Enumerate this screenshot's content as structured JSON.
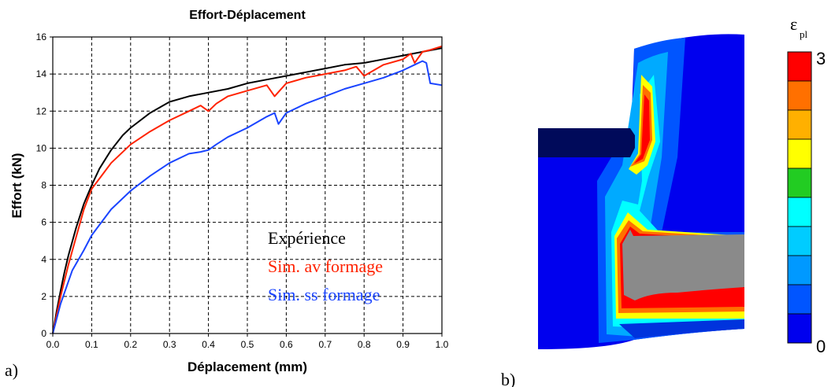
{
  "panel_a_label": "a)",
  "panel_b_label": "b)",
  "chart_data": {
    "type": "line",
    "title": "Effort-Déplacement",
    "xlabel": "Déplacement (mm)",
    "ylabel": "Effort (kN)",
    "xlim": [
      0,
      1.0
    ],
    "ylim": [
      0,
      16
    ],
    "xticks": [
      "0.0",
      "0.1",
      "0.2",
      "0.3",
      "0.4",
      "0.5",
      "0.6",
      "0.7",
      "0.8",
      "0.9",
      "1.0"
    ],
    "yticks": [
      "0",
      "2",
      "4",
      "6",
      "8",
      "10",
      "12",
      "14",
      "16"
    ],
    "grid": true,
    "legend_position": "bottom-right",
    "series": [
      {
        "name": "Expérience",
        "color": "#000000",
        "x": [
          0,
          0.01,
          0.02,
          0.03,
          0.04,
          0.06,
          0.08,
          0.1,
          0.12,
          0.15,
          0.18,
          0.2,
          0.25,
          0.3,
          0.35,
          0.4,
          0.45,
          0.5,
          0.55,
          0.6,
          0.65,
          0.7,
          0.75,
          0.8,
          0.85,
          0.9,
          0.95,
          1.0
        ],
        "y": [
          0,
          1.2,
          2.3,
          3.3,
          4.2,
          5.7,
          7.0,
          8.0,
          8.9,
          9.9,
          10.7,
          11.1,
          11.9,
          12.5,
          12.8,
          13.0,
          13.2,
          13.5,
          13.7,
          13.9,
          14.1,
          14.3,
          14.5,
          14.6,
          14.8,
          15.0,
          15.2,
          15.4
        ]
      },
      {
        "name": "Sim. av formage",
        "color": "#ff2200",
        "x": [
          0,
          0.02,
          0.04,
          0.06,
          0.08,
          0.1,
          0.15,
          0.2,
          0.25,
          0.3,
          0.35,
          0.38,
          0.4,
          0.42,
          0.45,
          0.5,
          0.55,
          0.57,
          0.6,
          0.65,
          0.7,
          0.75,
          0.78,
          0.8,
          0.85,
          0.9,
          0.92,
          0.93,
          0.95,
          0.97,
          1.0
        ],
        "y": [
          0,
          2.0,
          3.7,
          5.2,
          6.7,
          7.8,
          9.2,
          10.2,
          10.9,
          11.5,
          12.0,
          12.3,
          12.0,
          12.4,
          12.8,
          13.1,
          13.4,
          12.8,
          13.5,
          13.8,
          14.0,
          14.2,
          14.4,
          13.9,
          14.5,
          14.8,
          15.1,
          14.6,
          15.2,
          15.3,
          15.5
        ]
      },
      {
        "name": "Sim. ss formage",
        "color": "#1a44ff",
        "x": [
          0,
          0.02,
          0.05,
          0.08,
          0.1,
          0.15,
          0.2,
          0.25,
          0.3,
          0.35,
          0.38,
          0.4,
          0.42,
          0.45,
          0.5,
          0.55,
          0.57,
          0.58,
          0.6,
          0.65,
          0.7,
          0.75,
          0.8,
          0.85,
          0.9,
          0.93,
          0.95,
          0.96,
          0.97,
          1.0
        ],
        "y": [
          0,
          1.6,
          3.4,
          4.5,
          5.3,
          6.7,
          7.7,
          8.5,
          9.2,
          9.7,
          9.8,
          9.9,
          10.2,
          10.6,
          11.1,
          11.7,
          11.9,
          11.3,
          11.9,
          12.4,
          12.8,
          13.2,
          13.5,
          13.8,
          14.2,
          14.5,
          14.7,
          14.6,
          13.5,
          13.4
        ]
      }
    ]
  },
  "contour": {
    "legend_symbol": "ε",
    "legend_subscript": "pl",
    "legend_max": "3",
    "legend_min": "0",
    "legend_colors": [
      "#ff0000",
      "#ff7000",
      "#ffb000",
      "#ffff00",
      "#22cc22",
      "#00ffff",
      "#00ccff",
      "#0099ff",
      "#0055ff",
      "#0000ee"
    ],
    "colors": {
      "background": "#0000ee",
      "dark_block": "#000a5a",
      "bore": "#8a8a8a",
      "level_1": "#0055ff",
      "level_2": "#00aaff",
      "level_3": "#00ffff",
      "level_4": "#ffff00",
      "level_5": "#ff7000",
      "level_6": "#ff0000"
    }
  }
}
